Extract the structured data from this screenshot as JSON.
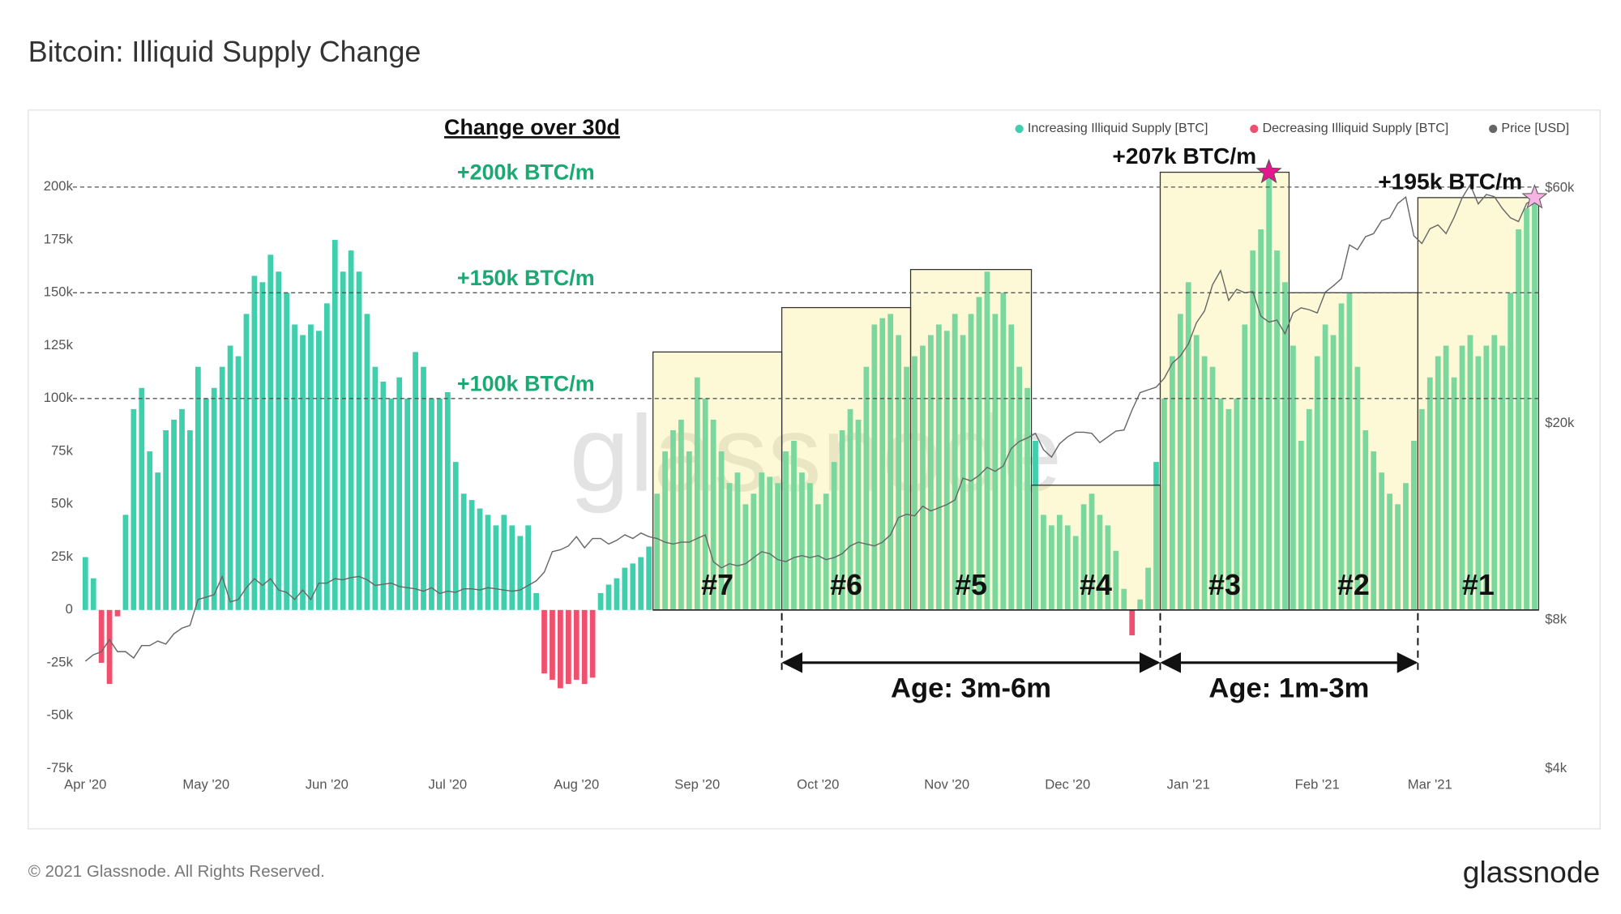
{
  "chart_data": {
    "type": "bar",
    "title": "Bitcoin: Illiquid Supply Change",
    "heading": "Change over 30d",
    "legend": "top-right",
    "categories": [
      "Apr '20",
      null,
      null,
      null,
      null,
      null,
      null,
      null,
      null,
      null,
      null,
      null,
      null,
      null,
      null,
      "May '20",
      null,
      null,
      null,
      null,
      null,
      null,
      null,
      null,
      null,
      null,
      null,
      null,
      null,
      null,
      "Jun '20",
      null,
      null,
      null,
      null,
      null,
      null,
      null,
      null,
      null,
      null,
      null,
      null,
      null,
      null,
      "Jul '20",
      null,
      null,
      null,
      null,
      null,
      null,
      null,
      null,
      null,
      null,
      null,
      null,
      null,
      null,
      null,
      "Aug '20",
      null,
      null,
      null,
      null,
      null,
      null,
      null,
      null,
      null,
      null,
      null,
      null,
      null,
      null,
      "Sep '20",
      null,
      null,
      null,
      null,
      null,
      null,
      null,
      null,
      null,
      null,
      null,
      null,
      null,
      null,
      "Oct '20",
      null,
      null,
      null,
      null,
      null,
      null,
      null,
      null,
      null,
      null,
      null,
      null,
      null,
      null,
      null,
      "Nov '20",
      null,
      null,
      null,
      null,
      null,
      null,
      null,
      null,
      null,
      null,
      null,
      null,
      null,
      null,
      "Dec '20",
      null,
      null,
      null,
      null,
      null,
      null,
      null,
      null,
      null,
      null,
      null,
      null,
      null,
      null,
      "Jan '21",
      null,
      null,
      null,
      null,
      null,
      null,
      null,
      null,
      null,
      null,
      null,
      null,
      null,
      null,
      null,
      "Feb '21",
      null,
      null,
      null,
      null,
      null,
      null,
      null,
      null,
      null,
      null,
      null,
      null,
      null,
      "Mar '21",
      null,
      null,
      null,
      null,
      null,
      null,
      null,
      null,
      null,
      null,
      null,
      null,
      null
    ],
    "series": [
      {
        "name": "Increasing Illiquid Supply [BTC]",
        "color": "#3fcfac",
        "values": [
          25000,
          15000,
          null,
          null,
          null,
          45000,
          95000,
          105000,
          75000,
          65000,
          85000,
          90000,
          95000,
          85000,
          115000,
          100000,
          105000,
          115000,
          125000,
          120000,
          140000,
          158000,
          155000,
          168000,
          160000,
          150000,
          135000,
          130000,
          135000,
          132000,
          145000,
          175000,
          160000,
          170000,
          160000,
          140000,
          115000,
          108000,
          100000,
          110000,
          100000,
          122000,
          115000,
          100000,
          100000,
          103000,
          70000,
          55000,
          52000,
          48000,
          45000,
          40000,
          45000,
          40000,
          35000,
          40000,
          8000,
          null,
          null,
          null,
          null,
          null,
          null,
          null,
          8000,
          12000,
          15000,
          20000,
          22000,
          25000,
          30000,
          55000,
          75000,
          85000,
          90000,
          75000,
          110000,
          100000,
          90000,
          75000,
          60000,
          65000,
          50000,
          55000,
          65000,
          63000,
          60000,
          75000,
          80000,
          65000,
          60000,
          50000,
          55000,
          70000,
          85000,
          95000,
          90000,
          115000,
          135000,
          138000,
          140000,
          130000,
          115000,
          120000,
          125000,
          130000,
          135000,
          132000,
          140000,
          130000,
          140000,
          148000,
          160000,
          140000,
          150000,
          135000,
          115000,
          105000,
          80000,
          45000,
          40000,
          45000,
          40000,
          35000,
          50000,
          55000,
          45000,
          40000,
          28000,
          10000,
          null,
          5000,
          20000,
          70000,
          100000,
          120000,
          140000,
          155000,
          130000,
          120000,
          115000,
          100000,
          95000,
          100000,
          135000,
          170000,
          180000,
          207000,
          170000,
          155000,
          125000,
          80000,
          95000,
          120000,
          135000,
          130000,
          145000,
          150000,
          115000,
          85000,
          75000,
          65000,
          55000,
          50000,
          60000,
          80000,
          95000,
          110000,
          120000,
          125000,
          110000,
          125000,
          130000,
          120000,
          125000,
          130000,
          125000,
          150000,
          180000,
          190000,
          195000
        ]
      },
      {
        "name": "Decreasing Illiquid Supply [BTC]",
        "color": "#f0506e",
        "values": [
          null,
          null,
          -25000,
          -35000,
          -3000,
          null,
          null,
          null,
          null,
          null,
          null,
          null,
          null,
          null,
          null,
          null,
          null,
          null,
          null,
          null,
          null,
          null,
          null,
          null,
          null,
          null,
          null,
          null,
          null,
          null,
          null,
          null,
          null,
          null,
          null,
          null,
          null,
          null,
          null,
          null,
          null,
          null,
          null,
          null,
          null,
          null,
          null,
          null,
          null,
          null,
          null,
          null,
          null,
          null,
          null,
          null,
          null,
          -30000,
          -33000,
          -37000,
          -35000,
          -33000,
          -35000,
          -32000,
          null,
          null,
          null,
          null,
          null,
          null,
          null,
          null,
          null,
          null,
          null,
          null,
          null,
          null,
          null,
          null,
          null,
          null,
          null,
          null,
          null,
          null,
          null,
          null,
          null,
          null,
          null,
          null,
          null,
          null,
          null,
          null,
          null,
          null,
          null,
          null,
          null,
          null,
          null,
          null,
          null,
          null,
          null,
          null,
          null,
          null,
          null,
          null,
          null,
          null,
          null,
          null,
          null,
          null,
          null,
          null,
          null,
          null,
          null,
          null,
          null,
          null,
          null,
          null,
          null,
          null,
          -12000,
          null,
          null,
          null,
          null,
          null,
          null,
          null,
          null,
          null,
          null,
          null,
          null,
          null,
          null,
          null,
          null,
          null,
          null,
          null,
          null,
          null,
          null,
          null,
          null,
          null,
          null,
          null,
          null,
          null,
          null,
          null,
          null,
          null,
          null,
          null,
          null,
          null,
          null,
          null,
          null,
          null,
          null,
          null,
          null,
          null,
          null,
          null,
          null,
          null,
          null
        ]
      },
      {
        "name": "Price [USD]",
        "color": "#666666",
        "type": "line",
        "axis": "y2",
        "values": [
          6600,
          6800,
          6900,
          7300,
          6900,
          6900,
          6700,
          7100,
          7100,
          7250,
          7150,
          7500,
          7700,
          7800,
          8800,
          8900,
          9000,
          9800,
          8700,
          8800,
          9300,
          9700,
          9400,
          9700,
          9200,
          9100,
          8800,
          9200,
          8800,
          9500,
          9500,
          9700,
          9650,
          9750,
          9800,
          9650,
          9400,
          9450,
          9500,
          9350,
          9300,
          9250,
          9150,
          9300,
          9050,
          9150,
          9100,
          9250,
          9250,
          9200,
          9300,
          9250,
          9200,
          9150,
          9200,
          9400,
          9600,
          10000,
          11000,
          11100,
          11300,
          11800,
          11200,
          11700,
          11700,
          11400,
          11600,
          11900,
          11700,
          12000,
          11800,
          11700,
          11500,
          11400,
          11500,
          11500,
          11700,
          11900,
          10500,
          10200,
          10400,
          10300,
          10400,
          10700,
          11000,
          10900,
          10600,
          10500,
          10700,
          10800,
          10700,
          10800,
          10600,
          10700,
          10900,
          11300,
          11500,
          11400,
          11300,
          11500,
          11900,
          12900,
          13100,
          13000,
          13600,
          13300,
          13500,
          13700,
          14000,
          15500,
          15300,
          15700,
          16300,
          16000,
          16400,
          17800,
          18400,
          18700,
          19100,
          17700,
          17100,
          18200,
          18800,
          19200,
          19200,
          19100,
          18300,
          18800,
          19300,
          19400,
          21300,
          23100,
          23400,
          23700,
          24700,
          26500,
          27400,
          29000,
          32000,
          33800,
          38200,
          40800,
          35500,
          37400,
          36800,
          37000,
          33000,
          32100,
          32400,
          30400,
          33500,
          34300,
          34000,
          33500,
          36900,
          38000,
          39300,
          46000,
          45000,
          47800,
          48500,
          51500,
          52200,
          55800,
          57500,
          48000,
          46300,
          49600,
          50500,
          48500,
          52300,
          57300,
          60900,
          55700,
          58200,
          57600,
          54500,
          52200,
          51300,
          55800,
          57000
        ]
      }
    ],
    "ylim": [
      -75000,
      230000
    ],
    "yticks": [
      {
        "value": -75000,
        "label": "-75k"
      },
      {
        "value": -50000,
        "label": "-50k"
      },
      {
        "value": -25000,
        "label": "-25k"
      },
      0,
      {
        "value": 25000,
        "label": "25k"
      },
      {
        "value": 50000,
        "label": "50k"
      },
      {
        "value": 75000,
        "label": "75k"
      },
      {
        "value": 100000,
        "label": "100k"
      },
      {
        "value": 125000,
        "label": "125k"
      },
      {
        "value": 150000,
        "label": "150k"
      },
      {
        "value": 175000,
        "label": "175k"
      },
      {
        "value": 200000,
        "label": "200k"
      }
    ],
    "y2lim": [
      4000,
      81000
    ],
    "y2_log": true,
    "y2ticks": [
      {
        "value": 4000,
        "label": "$4k"
      },
      {
        "value": 8000,
        "label": "$8k"
      },
      {
        "value": 20000,
        "label": "$20k"
      },
      {
        "value": 60000,
        "label": "$60k"
      }
    ],
    "grid": false,
    "ref_lines": [
      {
        "value": 200000,
        "label": "+200k BTC/m"
      },
      {
        "value": 150000,
        "label": "+150k BTC/m"
      },
      {
        "value": 100000,
        "label": "+100k BTC/m"
      }
    ],
    "boxes": [
      {
        "label": "#7",
        "value": 122000,
        "start": 71,
        "end": 86
      },
      {
        "label": "#6",
        "value": 143000,
        "start": 87,
        "end": 102
      },
      {
        "label": "#5",
        "value": 161000,
        "start": 103,
        "end": 117
      },
      {
        "label": "#4",
        "value": 59000,
        "start": 118,
        "end": 133
      },
      {
        "label": "#3",
        "value": 207000,
        "start": 134,
        "end": 149,
        "peak_label": "+207k BTC/m",
        "star_color": "#e3168d"
      },
      {
        "label": "#2",
        "value": 150000,
        "start": 150,
        "end": 165
      },
      {
        "label": "#1",
        "value": 195000,
        "start": 166,
        "end": 180,
        "peak_label": "+195k BTC/m",
        "star_color": "#f6b4e4"
      }
    ],
    "spans": [
      {
        "label": "Age: 3m-6m"
      },
      {
        "label": "Age: 1m-3m"
      }
    ],
    "watermark": "glassnode"
  },
  "footer": {
    "copyright": "© 2021 Glassnode. All Rights Reserved.",
    "logo": "glassnode"
  }
}
